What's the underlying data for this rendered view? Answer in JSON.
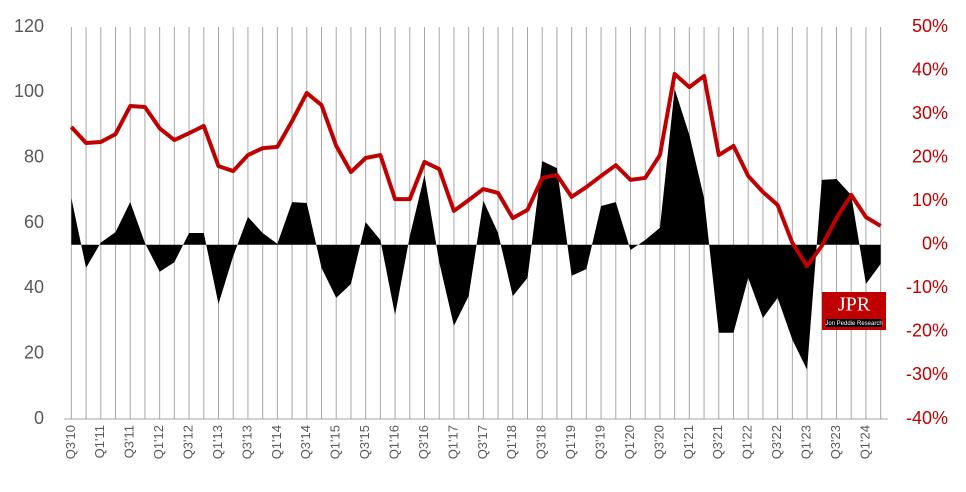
{
  "chart_data": {
    "type": "combo",
    "categories": [
      "Q3'10",
      null,
      "Q1'11",
      null,
      "Q3'11",
      null,
      "Q1'12",
      null,
      "Q3'12",
      null,
      "Q1'13",
      null,
      "Q3'13",
      null,
      "Q1'14",
      null,
      "Q3'14",
      null,
      "Q1'15",
      null,
      "Q3'15",
      null,
      "Q1'16",
      null,
      "Q3'16",
      null,
      "Q1'17",
      null,
      "Q3'17",
      null,
      "Q1'18",
      null,
      "Q3'18",
      null,
      "Q1'19",
      null,
      "Q3'19",
      null,
      "Q1'20",
      null,
      "Q3'20",
      null,
      "Q1'21",
      null,
      "Q3'21",
      null,
      "Q1'22",
      null,
      "Q3'22",
      null,
      "Q1'23",
      null,
      "Q3'23",
      null,
      "Q1'24",
      null
    ],
    "series": [
      {
        "type": "area",
        "axis": "y2",
        "color": "#000000",
        "values": [
          10.7,
          -5.3,
          0.5,
          2.9,
          9.8,
          0.4,
          -6.2,
          -4,
          2.7,
          2.7,
          -13.6,
          -2.6,
          6.4,
          2.7,
          0.2,
          9.8,
          9.6,
          -5.3,
          -12.2,
          -9,
          5.2,
          1.1,
          -16.1,
          2,
          16,
          -4,
          -18.6,
          -11.8,
          10.1,
          2.7,
          -11.8,
          -7.6,
          19.2,
          17.6,
          -7.1,
          -5.6,
          8.9,
          9.8,
          -1.2,
          1.1,
          3.9,
          35.8,
          25.2,
          10.7,
          -20.2,
          -20.2,
          -7.6,
          -16.8,
          -12.2,
          -21.8,
          -28.7,
          14.9,
          15.1,
          11.4,
          -9,
          -4.4
        ]
      },
      {
        "type": "line",
        "axis": "y",
        "color": "#c00000",
        "values": [
          89.4,
          84.5,
          84.8,
          87.2,
          95.8,
          95.5,
          89,
          85.4,
          87.5,
          89.7,
          77.4,
          75.9,
          80.8,
          82.9,
          83.3,
          91.2,
          99.8,
          96.1,
          83.6,
          75.6,
          79.9,
          80.8,
          67.3,
          67.3,
          78.7,
          76.5,
          63.7,
          67,
          70.4,
          69.2,
          61.5,
          64,
          73.8,
          74.7,
          68,
          71,
          74.4,
          77.7,
          73.2,
          73.8,
          80.8,
          105.6,
          101.6,
          105,
          80.8,
          83.6,
          74.4,
          69.5,
          65.5,
          53.9,
          46.8,
          53,
          61.5,
          68.6,
          61.8,
          59.1
        ]
      }
    ],
    "ylim": [
      0,
      120
    ],
    "yticks": [
      0,
      20,
      40,
      60,
      80,
      100,
      120
    ],
    "y2lim": [
      -40,
      50
    ],
    "y2ticks": [
      {
        "value": -40,
        "label": "-40%"
      },
      {
        "value": -30,
        "label": "-30%"
      },
      {
        "value": -20,
        "label": "-20%"
      },
      {
        "value": -10,
        "label": "-10%"
      },
      {
        "value": 0,
        "label": "0%"
      },
      {
        "value": 10,
        "label": "10%"
      },
      {
        "value": 20,
        "label": "20%"
      },
      {
        "value": 30,
        "label": "30%"
      },
      {
        "value": 40,
        "label": "40%"
      },
      {
        "value": 50,
        "label": "50%"
      }
    ],
    "y2color": "#c00000",
    "grid": "x"
  },
  "logo": {
    "text": "JPR",
    "subtitle": "Jon Peddie Research"
  }
}
